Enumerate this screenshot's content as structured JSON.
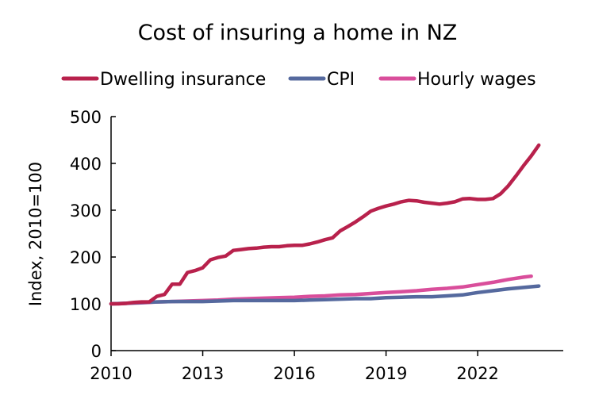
{
  "chart_data": {
    "type": "line",
    "title": "Cost of insuring a home in NZ",
    "xlabel": "",
    "ylabel": "Index, 2010=100",
    "xlim": [
      2010,
      2024.8
    ],
    "ylim": [
      0,
      500
    ],
    "x_ticks": [
      2010,
      2013,
      2016,
      2019,
      2022
    ],
    "y_ticks": [
      0,
      100,
      200,
      300,
      400,
      500
    ],
    "grid": false,
    "legend": "top",
    "colors": {
      "Dwelling insurance": "#b8214c",
      "CPI": "#55699e",
      "Hourly wages": "#d94e9b"
    },
    "series": [
      {
        "name": "Dwelling insurance",
        "points": [
          [
            2010,
            100
          ],
          [
            2010.25,
            100
          ],
          [
            2010.5,
            101
          ],
          [
            2010.75,
            103
          ],
          [
            2011,
            104
          ],
          [
            2011.25,
            104
          ],
          [
            2011.5,
            116
          ],
          [
            2011.75,
            120
          ],
          [
            2012,
            142
          ],
          [
            2012.25,
            142
          ],
          [
            2012.5,
            167
          ],
          [
            2012.75,
            171
          ],
          [
            2013,
            177
          ],
          [
            2013.25,
            194
          ],
          [
            2013.5,
            199
          ],
          [
            2013.75,
            202
          ],
          [
            2014,
            214
          ],
          [
            2014.25,
            216
          ],
          [
            2014.5,
            218
          ],
          [
            2014.75,
            219
          ],
          [
            2015,
            221
          ],
          [
            2015.25,
            222
          ],
          [
            2015.5,
            222
          ],
          [
            2015.75,
            224
          ],
          [
            2016,
            225
          ],
          [
            2016.25,
            225
          ],
          [
            2016.5,
            228
          ],
          [
            2016.75,
            232
          ],
          [
            2017,
            237
          ],
          [
            2017.25,
            241
          ],
          [
            2017.5,
            256
          ],
          [
            2017.75,
            265
          ],
          [
            2018,
            275
          ],
          [
            2018.25,
            286
          ],
          [
            2018.5,
            298
          ],
          [
            2018.75,
            304
          ],
          [
            2019,
            309
          ],
          [
            2019.25,
            313
          ],
          [
            2019.5,
            318
          ],
          [
            2019.75,
            321
          ],
          [
            2020,
            320
          ],
          [
            2020.25,
            317
          ],
          [
            2020.5,
            315
          ],
          [
            2020.75,
            313
          ],
          [
            2021,
            315
          ],
          [
            2021.25,
            318
          ],
          [
            2021.5,
            324
          ],
          [
            2021.75,
            325
          ],
          [
            2022,
            323
          ],
          [
            2022.25,
            323
          ],
          [
            2022.5,
            325
          ],
          [
            2022.75,
            335
          ],
          [
            2023,
            352
          ],
          [
            2023.25,
            373
          ],
          [
            2023.5,
            395
          ],
          [
            2023.75,
            416
          ],
          [
            2024,
            439
          ]
        ]
      },
      {
        "name": "CPI",
        "points": [
          [
            2010,
            100
          ],
          [
            2010.5,
            101
          ],
          [
            2011,
            103
          ],
          [
            2011.5,
            104
          ],
          [
            2012,
            105
          ],
          [
            2012.5,
            105
          ],
          [
            2013,
            105
          ],
          [
            2013.5,
            106
          ],
          [
            2014,
            107
          ],
          [
            2014.5,
            107
          ],
          [
            2015,
            107
          ],
          [
            2015.5,
            107
          ],
          [
            2016,
            107
          ],
          [
            2016.5,
            108
          ],
          [
            2017,
            109
          ],
          [
            2017.5,
            110
          ],
          [
            2018,
            111
          ],
          [
            2018.5,
            111
          ],
          [
            2019,
            113
          ],
          [
            2019.5,
            114
          ],
          [
            2020,
            115
          ],
          [
            2020.5,
            115
          ],
          [
            2021,
            117
          ],
          [
            2021.5,
            119
          ],
          [
            2022,
            124
          ],
          [
            2022.5,
            128
          ],
          [
            2023,
            132
          ],
          [
            2023.5,
            135
          ],
          [
            2024,
            138
          ]
        ]
      },
      {
        "name": "Hourly wages",
        "points": [
          [
            2010,
            100
          ],
          [
            2010.5,
            101
          ],
          [
            2011,
            102
          ],
          [
            2011.5,
            104
          ],
          [
            2012,
            105
          ],
          [
            2012.5,
            106
          ],
          [
            2013,
            107
          ],
          [
            2013.5,
            108
          ],
          [
            2014,
            110
          ],
          [
            2014.5,
            111
          ],
          [
            2015,
            112
          ],
          [
            2015.5,
            113
          ],
          [
            2016,
            114
          ],
          [
            2016.5,
            116
          ],
          [
            2017,
            117
          ],
          [
            2017.5,
            119
          ],
          [
            2018,
            120
          ],
          [
            2018.5,
            122
          ],
          [
            2019,
            124
          ],
          [
            2019.5,
            126
          ],
          [
            2020,
            128
          ],
          [
            2020.5,
            131
          ],
          [
            2021,
            133
          ],
          [
            2021.5,
            136
          ],
          [
            2022,
            141
          ],
          [
            2022.5,
            146
          ],
          [
            2023,
            152
          ],
          [
            2023.5,
            157
          ],
          [
            2023.75,
            159
          ]
        ]
      }
    ]
  }
}
